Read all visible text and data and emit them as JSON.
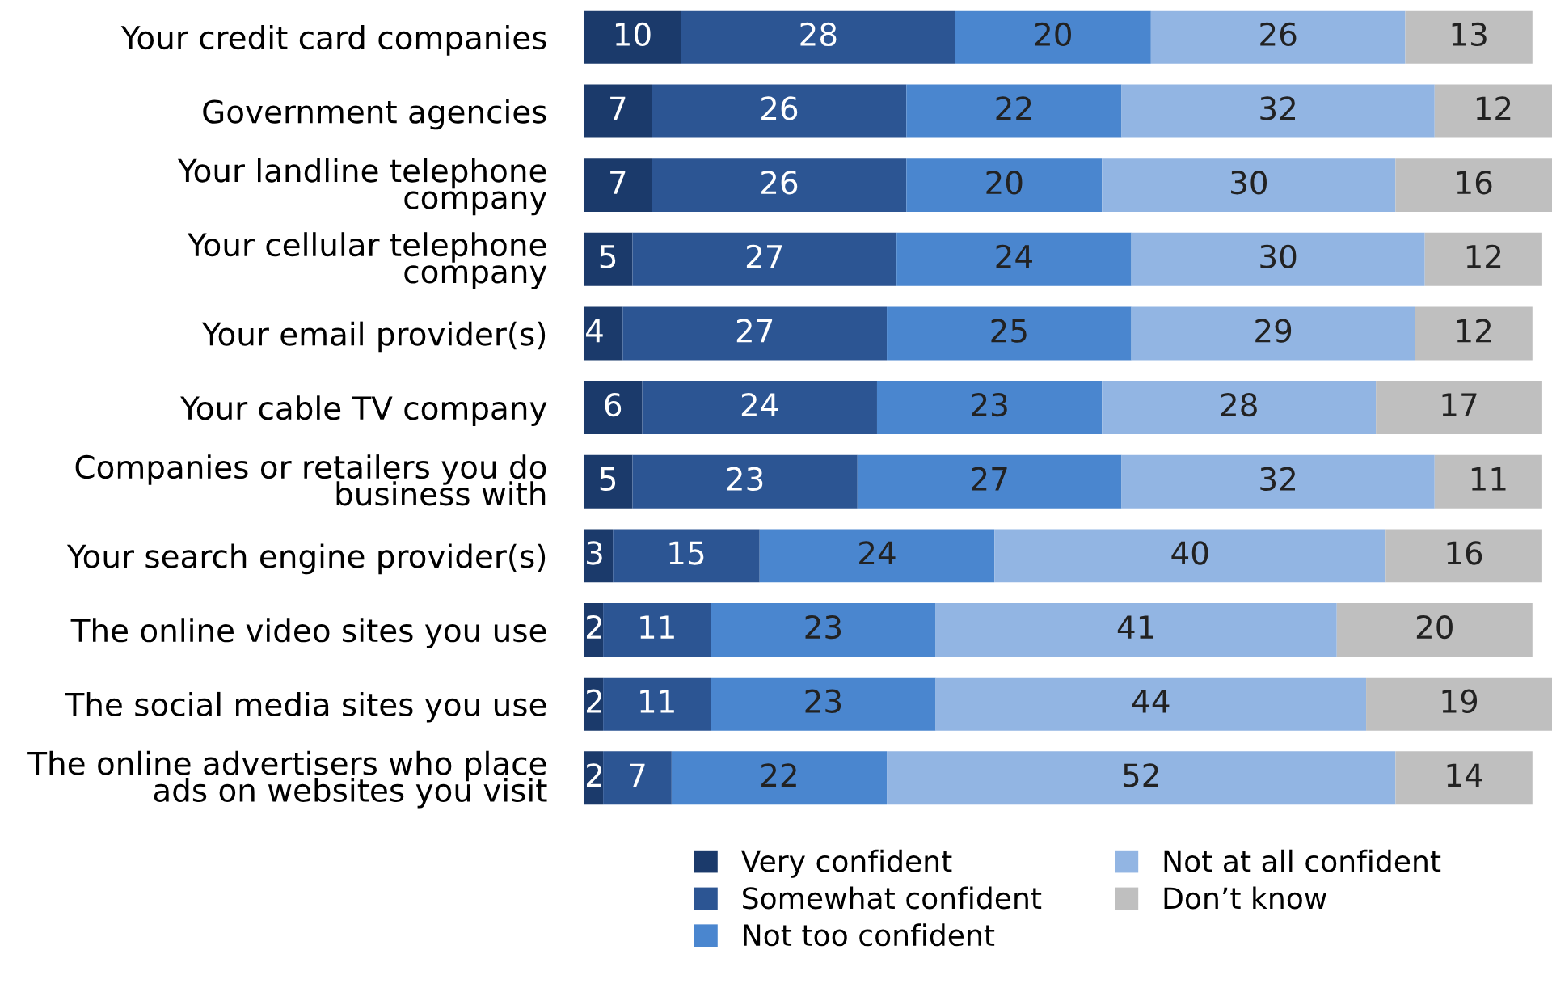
{
  "chart_data": {
    "type": "bar",
    "orientation": "horizontal",
    "stacked": true,
    "data_labels": true,
    "legend": "bottom",
    "grid": false,
    "categories": [
      "Your credit card companies",
      "Government agencies",
      "Your landline telephone\ncompany",
      "Your cellular telephone\ncompany",
      "Your email provider(s)",
      "Your cable TV company",
      "Companies or retailers you do\nbusiness with",
      "Your search engine provider(s)",
      "The online video sites you use",
      "The social media sites you use",
      "The online advertisers who place\nads on websites you visit"
    ],
    "series": [
      {
        "name": "Very confident",
        "color": "#1b3a6b",
        "values": [
          10,
          7,
          7,
          5,
          4,
          6,
          5,
          3,
          2,
          2,
          2
        ]
      },
      {
        "name": "Somewhat confident",
        "color": "#2c5593",
        "values": [
          28,
          26,
          26,
          27,
          27,
          24,
          23,
          15,
          11,
          11,
          7
        ]
      },
      {
        "name": "Not too confident",
        "color": "#4a86cf",
        "values": [
          20,
          22,
          20,
          24,
          25,
          23,
          27,
          24,
          23,
          23,
          22
        ]
      },
      {
        "name": "Not at all confident",
        "color": "#92b5e3",
        "values": [
          26,
          32,
          30,
          30,
          29,
          28,
          32,
          40,
          41,
          44,
          52
        ]
      },
      {
        "name": "Don’t know",
        "color": "#bfbfbf",
        "values": [
          13,
          12,
          16,
          12,
          12,
          17,
          11,
          16,
          20,
          19,
          14
        ]
      }
    ]
  }
}
